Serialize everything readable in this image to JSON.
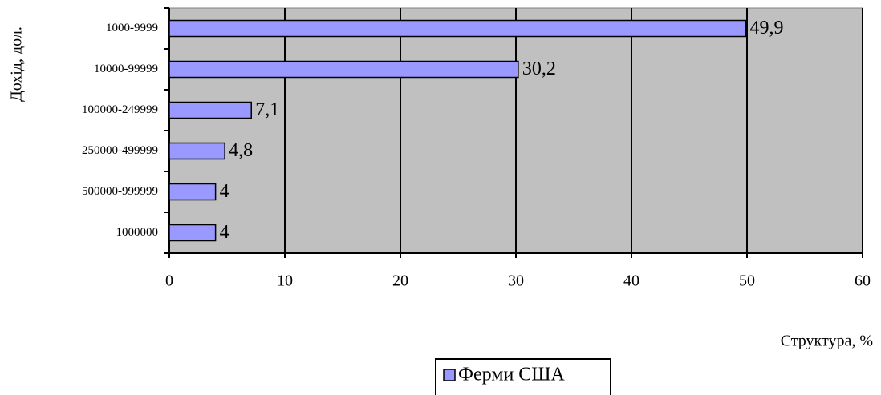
{
  "chart_data": {
    "type": "bar",
    "orientation": "horizontal",
    "categories": [
      "1000-9999",
      "10000-99999",
      "100000-249999",
      "250000-499999",
      "500000-999999",
      "1000000"
    ],
    "series": [
      {
        "name": "Ферми США",
        "color": "#9999ff",
        "values": [
          49.9,
          30.2,
          7.1,
          4.8,
          4,
          4
        ],
        "value_labels": [
          "49,9",
          "30,2",
          "7,1",
          "4,8",
          "4",
          "4"
        ]
      }
    ],
    "xlim": [
      0,
      60
    ],
    "xticks": [
      0,
      10,
      20,
      30,
      40,
      50,
      60
    ],
    "x_label": "Структура, %",
    "y_label": "Дохід, дол.",
    "grid": true,
    "legend": "bottom"
  }
}
